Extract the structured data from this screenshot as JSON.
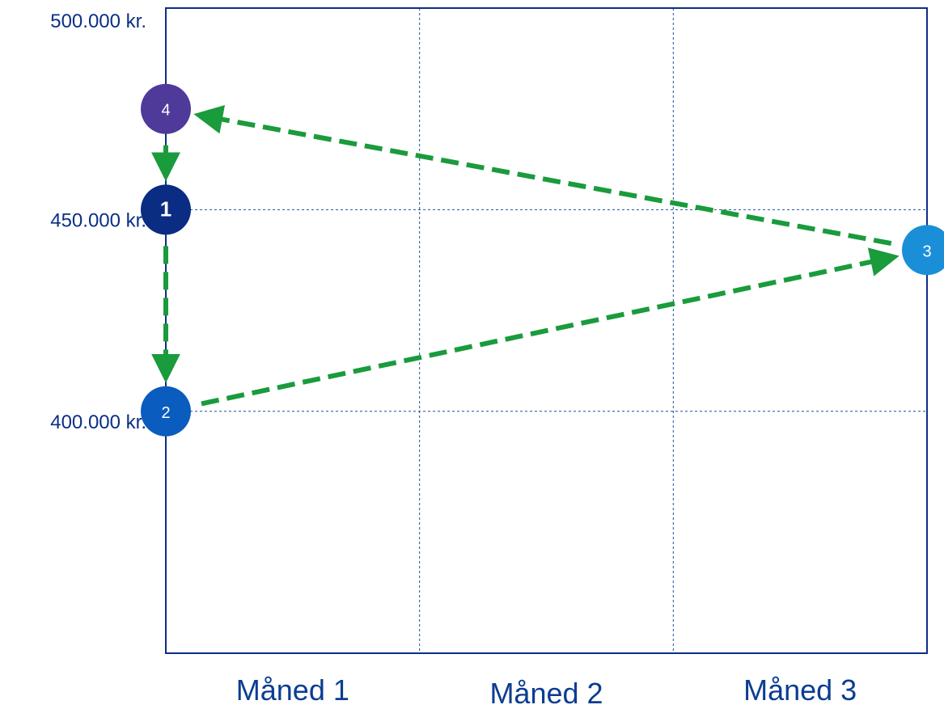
{
  "chart_data": {
    "type": "line",
    "title": "",
    "xlabel": "",
    "ylabel": "",
    "categories": [
      "Måned 1",
      "Måned 2",
      "Måned 3"
    ],
    "ylim": [
      340000,
      500000
    ],
    "y_ticks": [
      {
        "value": 500000,
        "label": "500.000 kr."
      },
      {
        "value": 450000,
        "label": "450.000 kr."
      },
      {
        "value": 400000,
        "label": "400.000 kr."
      }
    ],
    "grid": true,
    "points": [
      {
        "label": "1",
        "x": 0,
        "y": 450000,
        "color": "#0a2c82"
      },
      {
        "label": "2",
        "x": 0,
        "y": 400000,
        "color": "#0a5cbe"
      },
      {
        "label": "3",
        "x": 3,
        "y": 440000,
        "color": "#1a8fd8"
      },
      {
        "label": "4",
        "x": 0,
        "y": 475000,
        "color": "#4f3a9a"
      }
    ],
    "arrows": [
      {
        "from": 0,
        "to": 1
      },
      {
        "from": 1,
        "to": 2
      },
      {
        "from": 2,
        "to": 3
      },
      {
        "from": 3,
        "to": 0
      }
    ],
    "colors": {
      "axis": "#0b2f86",
      "grid": "#1f4f9a",
      "arrow": "#1a9b3c"
    }
  }
}
